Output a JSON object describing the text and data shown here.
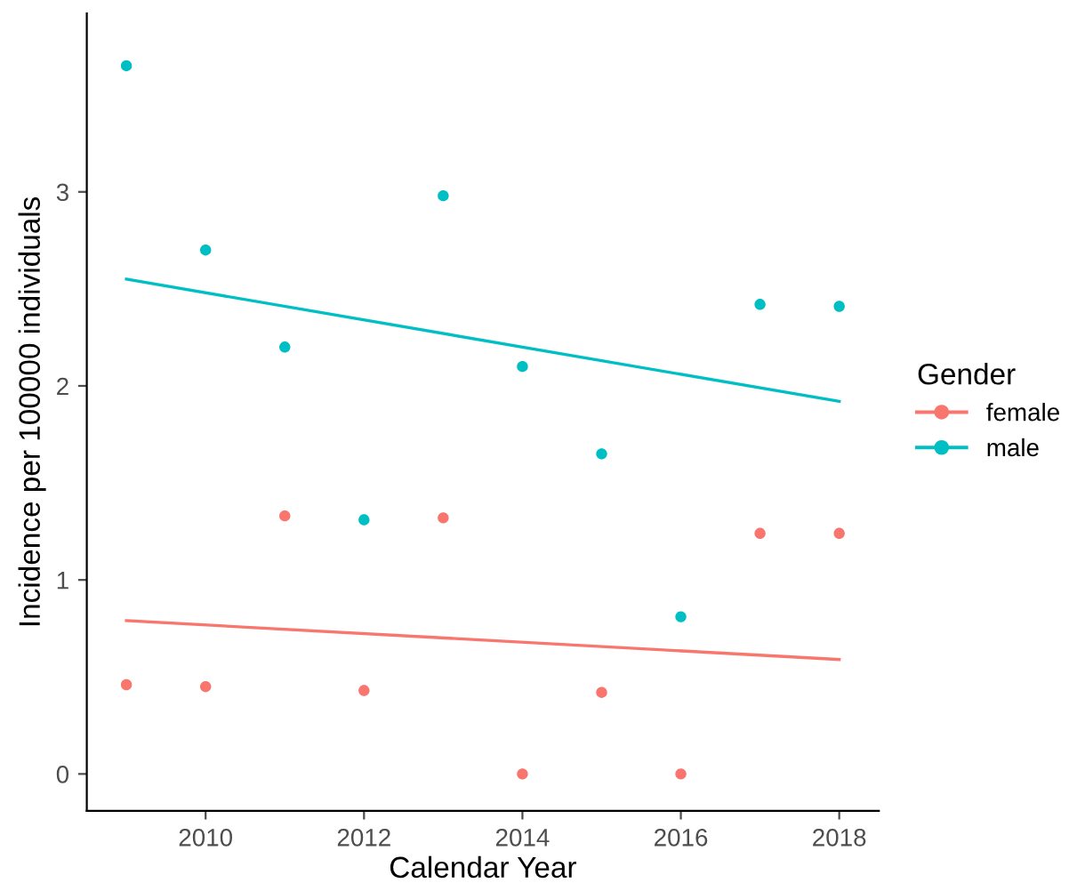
{
  "chart_data": {
    "type": "scatter",
    "xlabel": "Calendar Year",
    "ylabel": "Incidence per 100000 individuals",
    "legend_title": "Gender",
    "legend": "right",
    "grid": false,
    "marker": "circle",
    "xlim": [
      2008.5,
      2018.5
    ],
    "xticks": [
      2010,
      2012,
      2014,
      2016,
      2018
    ],
    "ylim": [
      -0.19,
      3.92
    ],
    "yticks": [
      0,
      1,
      2,
      3
    ],
    "series": [
      {
        "name": "female",
        "color": "#f8766d",
        "x": [
          2009,
          2010,
          2011,
          2012,
          2013,
          2014,
          2015,
          2016,
          2017,
          2018
        ],
        "values": [
          0.46,
          0.45,
          1.33,
          0.43,
          1.32,
          0,
          0.42,
          0,
          1.24,
          1.24
        ]
      },
      {
        "name": "male",
        "color": "#00bfc4",
        "x": [
          2009,
          2010,
          2011,
          2012,
          2013,
          2014,
          2015,
          2016,
          2017,
          2018
        ],
        "values": [
          3.65,
          2.7,
          2.2,
          1.31,
          2.98,
          2.1,
          1.65,
          0.81,
          2.42,
          2.41
        ]
      },
      {
        "type": "line",
        "marker": "none",
        "color": "#f8766d",
        "x": [
          2009,
          2018
        ],
        "values": [
          0.79,
          0.59
        ]
      },
      {
        "type": "line",
        "marker": "none",
        "color": "#00bfc4",
        "x": [
          2009,
          2018
        ],
        "values": [
          2.55,
          1.92
        ]
      }
    ]
  }
}
